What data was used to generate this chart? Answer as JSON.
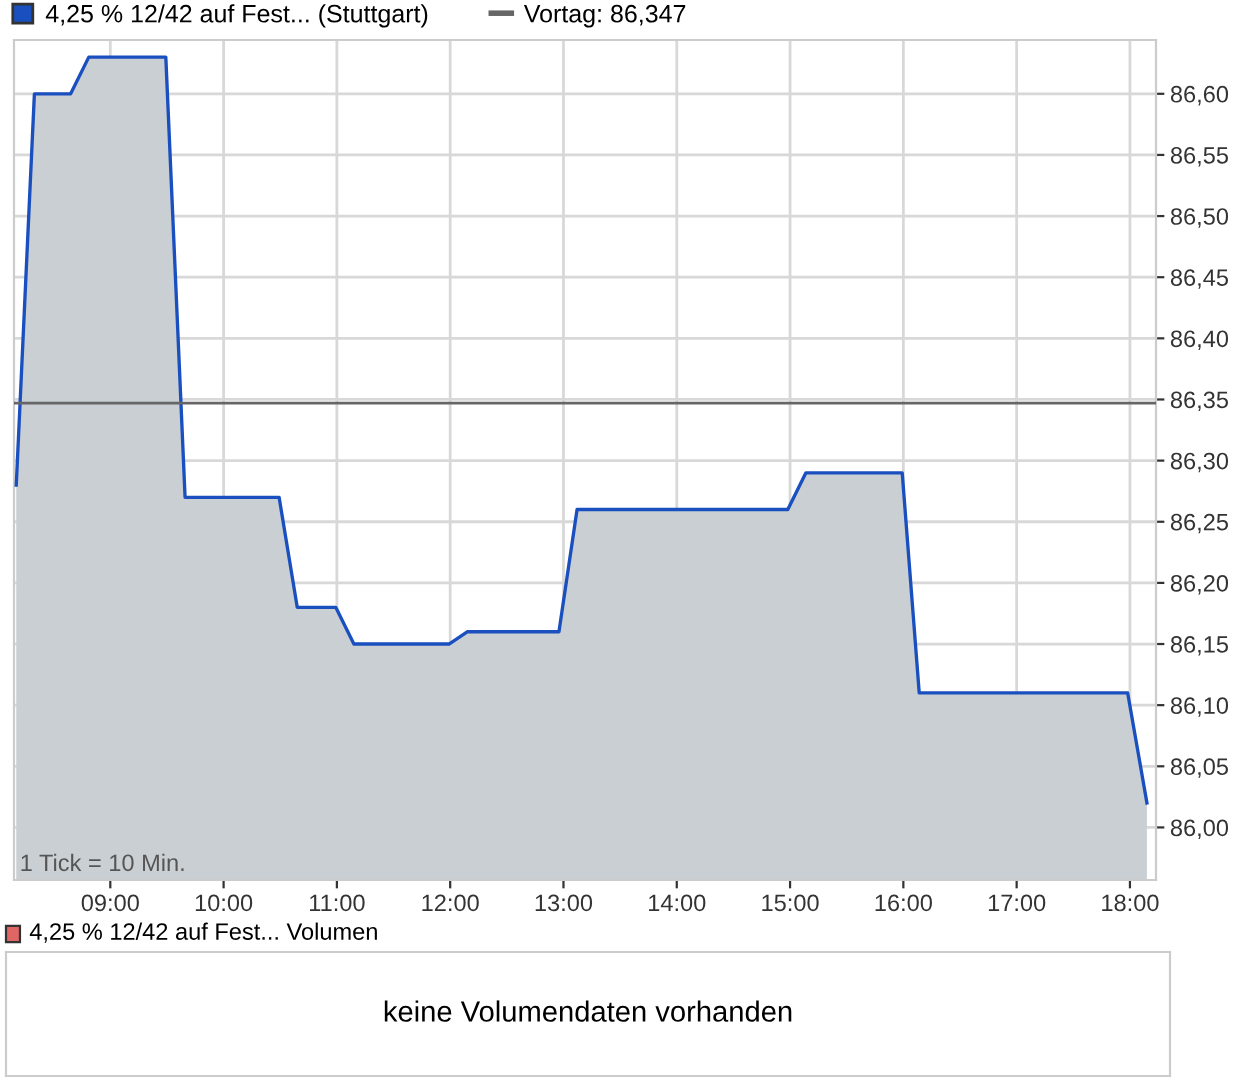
{
  "chart_data": [
    {
      "type": "area",
      "legend": "top left",
      "grid": true,
      "marker": "none",
      "line_style": "solid",
      "series": [
        {
          "name": "4,25 % 12/42 auf Fest... (Stuttgart)",
          "color": "#1a4fc0",
          "x": [
            8.17,
            8.33,
            8.65,
            8.81,
            9.49,
            9.66,
            10.49,
            10.65,
            10.99,
            11.15,
            11.99,
            12.15,
            12.96,
            13.12,
            14.98,
            15.14,
            15.99,
            16.14,
            17.98,
            18.15
          ],
          "values": [
            86.28,
            86.6,
            86.6,
            86.63,
            86.63,
            86.27,
            86.27,
            86.18,
            86.18,
            86.15,
            86.15,
            86.16,
            86.16,
            86.26,
            86.26,
            86.29,
            86.29,
            86.11,
            86.11,
            86.02
          ]
        }
      ],
      "ref_lines": [
        {
          "axis": "y",
          "value": 86.347,
          "label": "Vortag: 86,347",
          "color": "#666666"
        }
      ],
      "xlim": [
        8.15,
        18.23
      ],
      "ylim": [
        85.957,
        86.644
      ],
      "xticks": [
        {
          "value": 9,
          "label": "09:00"
        },
        {
          "value": 10,
          "label": "10:00"
        },
        {
          "value": 11,
          "label": "11:00"
        },
        {
          "value": 12,
          "label": "12:00"
        },
        {
          "value": 13,
          "label": "13:00"
        },
        {
          "value": 14,
          "label": "14:00"
        },
        {
          "value": 15,
          "label": "15:00"
        },
        {
          "value": 16,
          "label": "16:00"
        },
        {
          "value": 17,
          "label": "17:00"
        },
        {
          "value": 18,
          "label": "18:00"
        }
      ],
      "yticks": [
        {
          "value": 86.0,
          "label": "86,00"
        },
        {
          "value": 86.05,
          "label": "86,05"
        },
        {
          "value": 86.1,
          "label": "86,10"
        },
        {
          "value": 86.15,
          "label": "86,15"
        },
        {
          "value": 86.2,
          "label": "86,20"
        },
        {
          "value": 86.25,
          "label": "86,25"
        },
        {
          "value": 86.3,
          "label": "86,30"
        },
        {
          "value": 86.35,
          "label": "86,35"
        },
        {
          "value": 86.4,
          "label": "86,40"
        },
        {
          "value": 86.45,
          "label": "86,45"
        },
        {
          "value": 86.5,
          "label": "86,50"
        },
        {
          "value": 86.55,
          "label": "86,55"
        },
        {
          "value": 86.6,
          "label": "86,60"
        }
      ],
      "annotations": [
        "1 Tick = 10 Min."
      ]
    },
    {
      "type": "other",
      "title": "4,25 % 12/42 auf Fest... Volumen",
      "annotations": [
        "keine Volumendaten vorhanden"
      ]
    }
  ]
}
